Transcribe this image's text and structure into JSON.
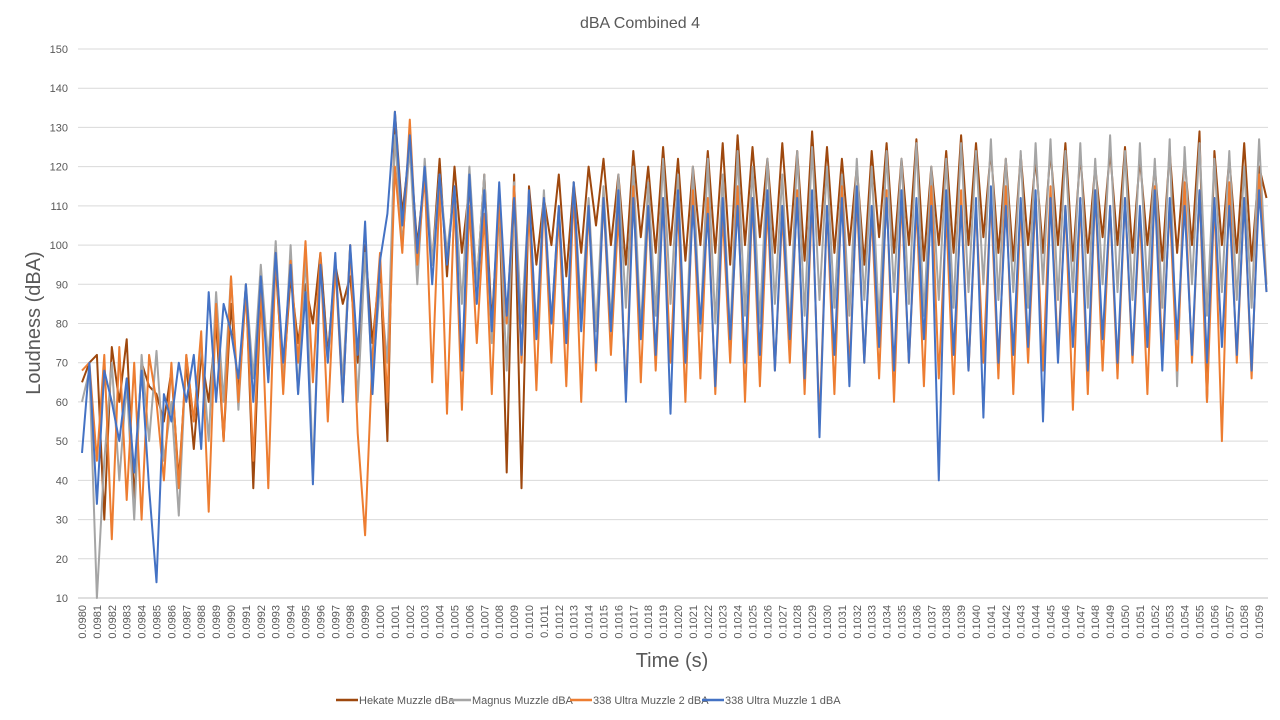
{
  "chart_data": {
    "type": "line",
    "title": "dBA Combined 4",
    "xlabel": "Time (s)",
    "ylabel": "Loudness (dBA)",
    "ylim": [
      10,
      150
    ],
    "y_ticks": [
      10,
      20,
      30,
      40,
      50,
      60,
      70,
      80,
      90,
      100,
      110,
      120,
      130,
      140,
      150
    ],
    "x_start": 0.098,
    "x_step": 5e-05,
    "x_tick_labels": [
      "0.0980",
      "0.0981",
      "0.0982",
      "0.0983",
      "0.0984",
      "0.0985",
      "0.0986",
      "0.0987",
      "0.0988",
      "0.0989",
      "0.0990",
      "0.0991",
      "0.0992",
      "0.0993",
      "0.0994",
      "0.0995",
      "0.0996",
      "0.0997",
      "0.0998",
      "0.0999",
      "0.1000",
      "0.1001",
      "0.1002",
      "0.1003",
      "0.1004",
      "0.1005",
      "0.1006",
      "0.1007",
      "0.1008",
      "0.1009",
      "0.1010",
      "0.1011",
      "0.1012",
      "0.1013",
      "0.1014",
      "0.1015",
      "0.1016",
      "0.1017",
      "0.1018",
      "0.1019",
      "0.1020",
      "0.1021",
      "0.1022",
      "0.1023",
      "0.1024",
      "0.1025",
      "0.1026",
      "0.1027",
      "0.1028",
      "0.1029",
      "0.1030",
      "0.1031",
      "0.1032",
      "0.1033",
      "0.1034",
      "0.1035",
      "0.1036",
      "0.1037",
      "0.1038",
      "0.1039",
      "0.1040",
      "0.1041",
      "0.1042",
      "0.1043",
      "0.1044",
      "0.1045",
      "0.1046",
      "0.1047",
      "0.1048",
      "0.1049",
      "0.1050",
      "0.1051",
      "0.1052",
      "0.1053",
      "0.1054",
      "0.1055",
      "0.1056",
      "0.1057",
      "0.1058",
      "0.1059"
    ],
    "grid": true,
    "legend_position": "bottom",
    "series": [
      {
        "name": "Hekate Muzzle dBa",
        "color": "#9E480E",
        "values": [
          65,
          70,
          72,
          30,
          74,
          60,
          76,
          35,
          70,
          64,
          62,
          55,
          68,
          40,
          70,
          48,
          72,
          60,
          80,
          50,
          85,
          62,
          90,
          38,
          88,
          70,
          95,
          65,
          92,
          75,
          90,
          80,
          98,
          72,
          95,
          85,
          92,
          70,
          100,
          75,
          95,
          50,
          134,
          108,
          125,
          100,
          118,
          95,
          122,
          92,
          120,
          98,
          115,
          90,
          118,
          80,
          112,
          42,
          118,
          38,
          115,
          95,
          112,
          100,
          118,
          92,
          116,
          98,
          120,
          105,
          122,
          100,
          118,
          95,
          124,
          102,
          120,
          98,
          125,
          100,
          122,
          96,
          120,
          100,
          124,
          98,
          126,
          95,
          128,
          100,
          125,
          102,
          122,
          98,
          126,
          100,
          124,
          96,
          129,
          100,
          125,
          98,
          122,
          100,
          120,
          95,
          124,
          102,
          126,
          98,
          122,
          100,
          127,
          96,
          120,
          100,
          124,
          98,
          128,
          100,
          126,
          102,
          124,
          98,
          122,
          96,
          123,
          100,
          122,
          98,
          124,
          100,
          126,
          96,
          123,
          98,
          120,
          102,
          124,
          100,
          125,
          98,
          122,
          100,
          120,
          96,
          124,
          98,
          122,
          100,
          129,
          60,
          124,
          100,
          122,
          98,
          126,
          96,
          120,
          112
        ]
      },
      {
        "name": "Magnus Muzzle dBA",
        "color": "#A5A5A5",
        "values": [
          60,
          68,
          10,
          45,
          70,
          40,
          65,
          30,
          72,
          50,
          73,
          45,
          60,
          31,
          72,
          55,
          75,
          50,
          88,
          60,
          92,
          58,
          90,
          66,
          95,
          70,
          101,
          64,
          100,
          62,
          98,
          42,
          95,
          70,
          96,
          65,
          100,
          60,
          98,
          66,
          90,
          70,
          128,
          100,
          125,
          90,
          122,
          95,
          118,
          98,
          115,
          85,
          120,
          90,
          118,
          75,
          110,
          68,
          116,
          80,
          112,
          78,
          114,
          80,
          110,
          75,
          116,
          82,
          112,
          78,
          115,
          80,
          118,
          84,
          120,
          78,
          116,
          82,
          122,
          85,
          118,
          70,
          120,
          78,
          122,
          80,
          118,
          76,
          124,
          82,
          120,
          80,
          122,
          85,
          118,
          78,
          124,
          82,
          125,
          86,
          120,
          84,
          118,
          82,
          122,
          86,
          120,
          80,
          124,
          88,
          122,
          85,
          126,
          82,
          120,
          86,
          122,
          84,
          126,
          88,
          124,
          90,
          127,
          86,
          122,
          88,
          124,
          84,
          126,
          90,
          127,
          86,
          124,
          88,
          126,
          84,
          122,
          90,
          128,
          88,
          124,
          86,
          126,
          88,
          122,
          84,
          127,
          64,
          125,
          90,
          126,
          82,
          122,
          88,
          124,
          86,
          120,
          84,
          127,
          90
        ]
      },
      {
        "name": "338 Ultra Muzzle 2 dBA",
        "color": "#ED7D31",
        "values": [
          68,
          70,
          45,
          72,
          25,
          74,
          35,
          70,
          30,
          72,
          60,
          40,
          70,
          38,
          72,
          55,
          78,
          32,
          85,
          50,
          92,
          60,
          88,
          45,
          90,
          38,
          98,
          62,
          96,
          70,
          101,
          65,
          98,
          55,
          95,
          60,
          100,
          52,
          26,
          72,
          98,
          60,
          120,
          98,
          132,
          95,
          118,
          65,
          115,
          57,
          112,
          58,
          110,
          75,
          108,
          62,
          112,
          80,
          115,
          70,
          110,
          63,
          112,
          70,
          108,
          64,
          114,
          60,
          110,
          68,
          112,
          72,
          108,
          62,
          115,
          65,
          110,
          68,
          112,
          70,
          110,
          60,
          114,
          66,
          112,
          62,
          108,
          70,
          115,
          60,
          112,
          64,
          110,
          68,
          108,
          70,
          114,
          62,
          112,
          54,
          110,
          62,
          115,
          68,
          112,
          70,
          108,
          66,
          114,
          60,
          112,
          70,
          110,
          64,
          115,
          66,
          108,
          62,
          114,
          68,
          110,
          70,
          112,
          66,
          115,
          62,
          110,
          70,
          112,
          68,
          115,
          72,
          110,
          58,
          112,
          62,
          114,
          68,
          110,
          66,
          112,
          70,
          108,
          62,
          115,
          72,
          110,
          68,
          116,
          70,
          114,
          60,
          112,
          50,
          116,
          70,
          112,
          66,
          118,
          88
        ]
      },
      {
        "name": "338 Ultra Muzzle 1 dBA",
        "color": "#4472C4",
        "values": [
          47,
          70,
          34,
          68,
          60,
          50,
          66,
          42,
          68,
          38,
          14,
          62,
          55,
          70,
          60,
          72,
          48,
          88,
          60,
          85,
          78,
          66,
          90,
          60,
          92,
          65,
          98,
          70,
          95,
          62,
          88,
          39,
          95,
          70,
          98,
          60,
          100,
          72,
          106,
          62,
          96,
          108,
          134,
          105,
          128,
          98,
          120,
          90,
          118,
          95,
          115,
          68,
          118,
          85,
          114,
          78,
          116,
          82,
          112,
          72,
          114,
          76,
          112,
          80,
          110,
          75,
          116,
          78,
          110,
          70,
          112,
          78,
          114,
          60,
          112,
          76,
          110,
          72,
          112,
          57,
          114,
          70,
          110,
          80,
          108,
          64,
          112,
          76,
          110,
          70,
          112,
          72,
          114,
          68,
          110,
          76,
          112,
          66,
          114,
          51,
          110,
          72,
          112,
          64,
          115,
          70,
          110,
          74,
          112,
          68,
          114,
          70,
          112,
          76,
          110,
          40,
          114,
          72,
          110,
          68,
          112,
          56,
          115,
          70,
          110,
          72,
          112,
          74,
          114,
          55,
          112,
          70,
          110,
          74,
          112,
          68,
          114,
          76,
          110,
          70,
          112,
          72,
          110,
          74,
          114,
          68,
          112,
          76,
          110,
          72,
          114,
          70,
          112,
          74,
          110,
          72,
          112,
          68,
          114,
          88
        ]
      }
    ]
  }
}
